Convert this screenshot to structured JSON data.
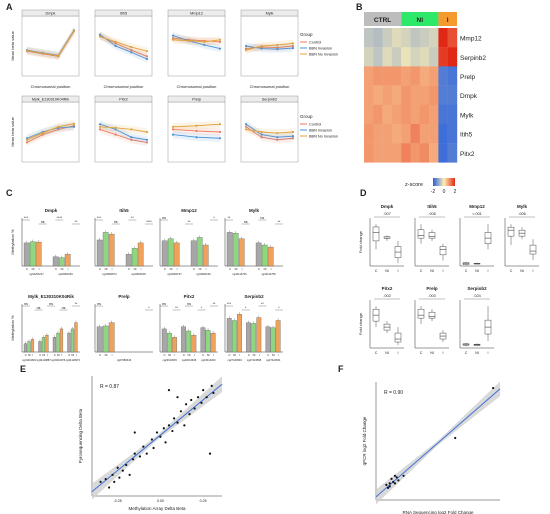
{
  "figure": {
    "panel_labels": [
      "A",
      "B",
      "C",
      "D",
      "E",
      "F"
    ]
  },
  "colors": {
    "control": "#f07a5a",
    "bbn_invasion": "#4a90d9",
    "bbn_no_invasion": "#e0a23b",
    "bar_c": "#a7a7a7",
    "bar_ni": "#8ed67f",
    "bar_i": "#f0a25c",
    "ctrl_head": "#bdbdbd",
    "ni_head": "#2ee86a",
    "i_head": "#f59a2e",
    "reg_line": "#3d6fd6",
    "band": "#cfcfcf"
  },
  "chart_data": [
    {
      "panel": "A",
      "type": "line",
      "legend_title": "Group",
      "legend": [
        "Control",
        "BBN Invasion",
        "BBN No Invasion"
      ],
      "xlabel": "Chromosomal position",
      "ylabel": "Mean beta value",
      "subplots": [
        {
          "title": "Dmpk",
          "series": [
            [
              0.4,
              0.35,
              0.3,
              0.78
            ],
            [
              0.42,
              0.37,
              0.32,
              0.8
            ],
            [
              0.41,
              0.36,
              0.31,
              0.79
            ]
          ]
        },
        {
          "title": "Itih5",
          "series": [
            [
              0.7,
              0.55,
              0.42,
              0.3
            ],
            [
              0.72,
              0.5,
              0.38,
              0.25
            ],
            [
              0.68,
              0.58,
              0.48,
              0.4
            ]
          ]
        },
        {
          "title": "Mmp12",
          "series": [
            [
              0.65,
              0.62,
              0.6,
              0.58
            ],
            [
              0.7,
              0.6,
              0.52,
              0.45
            ],
            [
              0.62,
              0.6,
              0.58,
              0.62
            ]
          ]
        },
        {
          "title": "Mylk",
          "series": [
            [
              0.45,
              0.48,
              0.47,
              0.5
            ],
            [
              0.5,
              0.45,
              0.44,
              0.46
            ],
            [
              0.42,
              0.5,
              0.52,
              0.55
            ]
          ]
        },
        {
          "title": "Mylk_E130310K04Rik",
          "series": [
            [
              0.3,
              0.45,
              0.55,
              0.62
            ],
            [
              0.38,
              0.5,
              0.58,
              0.6
            ],
            [
              0.35,
              0.48,
              0.6,
              0.66
            ]
          ]
        },
        {
          "title": "Pitx2",
          "series": [
            [
              0.55,
              0.45,
              0.35,
              0.3
            ],
            [
              0.65,
              0.55,
              0.4,
              0.35
            ],
            [
              0.6,
              0.58,
              0.55,
              0.5
            ]
          ]
        },
        {
          "title": "Prelp",
          "series": [
            [
              0.55,
              0.52,
              0.5
            ],
            [
              0.45,
              0.4,
              0.38
            ],
            [
              0.6,
              0.62,
              0.65
            ]
          ]
        },
        {
          "title": "Serpinb2",
          "series": [
            [
              0.6,
              0.4,
              0.35,
              0.38
            ],
            [
              0.65,
              0.45,
              0.4,
              0.42
            ],
            [
              0.55,
              0.5,
              0.48,
              0.5
            ]
          ]
        }
      ]
    },
    {
      "panel": "B",
      "type": "heatmap",
      "columns": [
        "CTRL",
        "NI",
        "I"
      ],
      "rows": [
        "Mmp12",
        "Serpinb2",
        "Prelp",
        "Dmpk",
        "Mylk",
        "Itih5",
        "Pitx2"
      ],
      "values": [
        [
          -0.6,
          -0.7,
          -0.5,
          -0.3,
          -0.4,
          -0.6,
          -0.5,
          -0.4,
          2.0,
          1.6
        ],
        [
          -0.4,
          -0.6,
          -0.3,
          -0.5,
          -0.2,
          -0.4,
          -0.3,
          -0.5,
          1.8,
          2.0
        ],
        [
          0.8,
          0.9,
          0.9,
          0.9,
          0.8,
          0.9,
          0.7,
          0.8,
          -1.6,
          -1.7
        ],
        [
          0.8,
          0.7,
          0.8,
          0.7,
          0.9,
          0.8,
          0.8,
          0.9,
          -1.6,
          -1.6
        ],
        [
          0.8,
          0.9,
          0.7,
          0.8,
          0.9,
          0.8,
          0.9,
          0.8,
          -1.7,
          -1.7
        ],
        [
          0.9,
          0.8,
          0.8,
          0.7,
          0.8,
          1.1,
          0.8,
          0.8,
          -1.8,
          -1.7
        ],
        [
          0.9,
          0.8,
          0.8,
          0.8,
          1.1,
          0.9,
          1.0,
          0.7,
          -1.8,
          -1.6
        ]
      ],
      "scale_label": "z-score",
      "scale_ticks": [
        "-2",
        "0",
        "2"
      ]
    },
    {
      "panel": "C",
      "type": "bar",
      "ylabel": "Methylation %",
      "group_labels": [
        "C",
        "NI",
        "I"
      ],
      "subplots": [
        {
          "title": "Dmpk",
          "sites": [
            "cg04254227",
            "cg02962339"
          ],
          "values": [
            [
              55,
              58,
              57
            ],
            [
              22,
              20,
              28
            ]
          ],
          "sig": [
            "***",
            "ns",
            "****",
            "**"
          ]
        },
        {
          "title": "Itih5",
          "sites": [
            "cg04990572",
            "cg34663018"
          ],
          "values": [
            [
              62,
              80,
              76
            ],
            [
              28,
              42,
              55
            ]
          ],
          "sig": [
            "***",
            "ns",
            "**",
            "****"
          ]
        },
        {
          "title": "Mmp12",
          "sites": [
            "cg04990727",
            "cg04990126"
          ],
          "values": [
            [
              60,
              65,
              55
            ],
            [
              60,
              68,
              50
            ]
          ],
          "sig": [
            "ns",
            "**",
            "*"
          ]
        },
        {
          "title": "Mylk",
          "sites": [
            "cg34112736",
            "cg34112759"
          ],
          "values": [
            [
              80,
              78,
              65
            ],
            [
              55,
              50,
              45
            ]
          ],
          "sig": [
            "**",
            "ns",
            "ns",
            "**"
          ]
        },
        {
          "title": "Mylk_E130310K04Rik",
          "sites": [
            "cg34119820",
            "cg34119887",
            "cg34119976",
            "cg34119973"
          ],
          "values": [
            [
              20,
              25,
              30
            ],
            [
              25,
              35,
              40
            ],
            [
              35,
              45,
              55
            ],
            [
              45,
              55,
              70
            ]
          ],
          "sig": [
            "ns",
            "ns",
            "ns",
            "ns",
            "**"
          ]
        },
        {
          "title": "Prelp",
          "sites": [
            "cg07080346"
          ],
          "values": [
            [
              60,
              62,
              70
            ]
          ],
          "sig": [
            "ns",
            "*"
          ]
        },
        {
          "title": "Pitx2",
          "sites": [
            "cg23013615",
            "cg23013638",
            "cg23014003"
          ],
          "values": [
            [
              55,
              45,
              35
            ],
            [
              60,
              50,
              40
            ],
            [
              58,
              52,
              45
            ]
          ],
          "sig": [
            "ns",
            "**",
            "ns",
            "*",
            "**"
          ]
        },
        {
          "title": "Serpinb2",
          "sites": [
            "cg27424549",
            "cg27424598",
            "cg27424661"
          ],
          "values": [
            [
              80,
              75,
              90
            ],
            [
              70,
              68,
              82
            ],
            [
              60,
              58,
              75
            ]
          ],
          "sig": [
            "***",
            "*",
            "**",
            "*"
          ]
        }
      ]
    },
    {
      "panel": "D",
      "type": "box",
      "ylabel": "Fold change",
      "group_labels": [
        "C",
        "NI",
        "I"
      ],
      "subplots": [
        {
          "title": "Dmpk",
          "p": ".007",
          "boxes": [
            [
              0.6,
              0.9,
              1.2,
              1.4,
              1.5
            ],
            [
              0.9,
              1.0,
              1.0,
              1.05,
              1.1
            ],
            [
              0.1,
              0.3,
              0.5,
              0.7,
              0.9
            ]
          ]
        },
        {
          "title": "Itih5",
          "p": ".006",
          "boxes": [
            [
              0.8,
              1.0,
              1.1,
              1.3,
              1.5
            ],
            [
              0.9,
              1.0,
              1.05,
              1.2,
              1.3
            ],
            [
              0.2,
              0.4,
              0.6,
              0.7,
              0.8
            ]
          ]
        },
        {
          "title": "Mmp12",
          "p": "<.001",
          "boxes": [
            [
              0.2,
              0.5,
              0.8,
              1.2,
              1.5
            ],
            [
              0.5,
              0.7,
              0.9,
              1.0,
              1.2
            ],
            [
              6,
              8,
              10,
              12,
              15
            ]
          ]
        },
        {
          "title": "Mylk",
          "p": ".006",
          "boxes": [
            [
              0.7,
              1.0,
              1.2,
              1.3,
              1.4
            ],
            [
              0.9,
              1.0,
              1.1,
              1.2,
              1.3
            ],
            [
              0.2,
              0.4,
              0.5,
              0.7,
              0.9
            ]
          ]
        },
        {
          "title": "Pitx2",
          "p": ".002",
          "boxes": [
            [
              0.7,
              0.9,
              1.1,
              1.3,
              1.4
            ],
            [
              0.5,
              0.6,
              0.7,
              0.8,
              0.9
            ],
            [
              0.1,
              0.2,
              0.3,
              0.5,
              0.7
            ]
          ]
        },
        {
          "title": "Prelp",
          "p": ".003",
          "boxes": [
            [
              0.8,
              1.0,
              1.1,
              1.3,
              1.4
            ],
            [
              0.9,
              1.0,
              1.05,
              1.2,
              1.3
            ],
            [
              0.2,
              0.3,
              0.4,
              0.5,
              0.6
            ]
          ]
        },
        {
          "title": "Serpinb2",
          "p": ".024",
          "boxes": [
            [
              0.5,
              0.8,
              1.0,
              1.2,
              1.5
            ],
            [
              0.5,
              0.7,
              0.9,
              1.1,
              1.3
            ],
            [
              2,
              4,
              6,
              8,
              12
            ]
          ]
        }
      ]
    },
    {
      "panel": "E",
      "type": "scatter",
      "annotation": "R = 0.87",
      "xlabel": "Methylation Array Delta Beta",
      "ylabel": "Pyrosequencing Delta Beta",
      "x_ticks": [
        "-0.25",
        "0.00",
        "0.25"
      ],
      "points": [
        [
          -0.35,
          -0.3
        ],
        [
          -0.32,
          -0.28
        ],
        [
          -0.3,
          -0.34
        ],
        [
          -0.28,
          -0.25
        ],
        [
          -0.27,
          -0.3
        ],
        [
          -0.25,
          -0.2
        ],
        [
          -0.24,
          -0.27
        ],
        [
          -0.22,
          -0.22
        ],
        [
          -0.2,
          -0.18
        ],
        [
          -0.18,
          -0.25
        ],
        [
          -0.16,
          -0.14
        ],
        [
          -0.15,
          -0.1
        ],
        [
          -0.12,
          -0.12
        ],
        [
          -0.1,
          -0.05
        ],
        [
          -0.08,
          -0.1
        ],
        [
          -0.05,
          0.0
        ],
        [
          -0.04,
          -0.06
        ],
        [
          -0.02,
          0.05
        ],
        [
          0.0,
          0.02
        ],
        [
          0.02,
          0.08
        ],
        [
          0.03,
          -0.02
        ],
        [
          0.05,
          0.1
        ],
        [
          0.07,
          0.06
        ],
        [
          0.08,
          0.15
        ],
        [
          0.1,
          0.12
        ],
        [
          0.12,
          0.2
        ],
        [
          0.14,
          0.1
        ],
        [
          0.15,
          0.25
        ],
        [
          0.17,
          0.18
        ],
        [
          0.18,
          0.28
        ],
        [
          0.2,
          0.22
        ],
        [
          0.22,
          0.3
        ],
        [
          0.24,
          0.26
        ],
        [
          0.25,
          0.35
        ],
        [
          0.27,
          0.3
        ],
        [
          0.29,
          -0.1
        ],
        [
          0.3,
          0.38
        ],
        [
          0.31,
          0.33
        ],
        [
          0.1,
          0.3
        ],
        [
          -0.15,
          0.05
        ],
        [
          0.05,
          0.35
        ]
      ]
    },
    {
      "panel": "F",
      "type": "scatter",
      "annotation": "R = 0.90",
      "xlabel": "RNA Sequencing log2 Fold Change",
      "ylabel": "qPCR log2 Fold Change",
      "points": [
        [
          -2.0,
          -1.6
        ],
        [
          -1.9,
          -1.8
        ],
        [
          -1.8,
          -1.5
        ],
        [
          -1.8,
          -1.7
        ],
        [
          -1.7,
          -1.2
        ],
        [
          -1.6,
          -1.4
        ],
        [
          -1.5,
          -1.0
        ],
        [
          -1.5,
          -1.5
        ],
        [
          -1.4,
          -1.1
        ],
        [
          -1.3,
          -1.3
        ],
        [
          -1.0,
          -1.0
        ],
        [
          2.0,
          1.5
        ],
        [
          4.2,
          4.8
        ]
      ]
    }
  ]
}
